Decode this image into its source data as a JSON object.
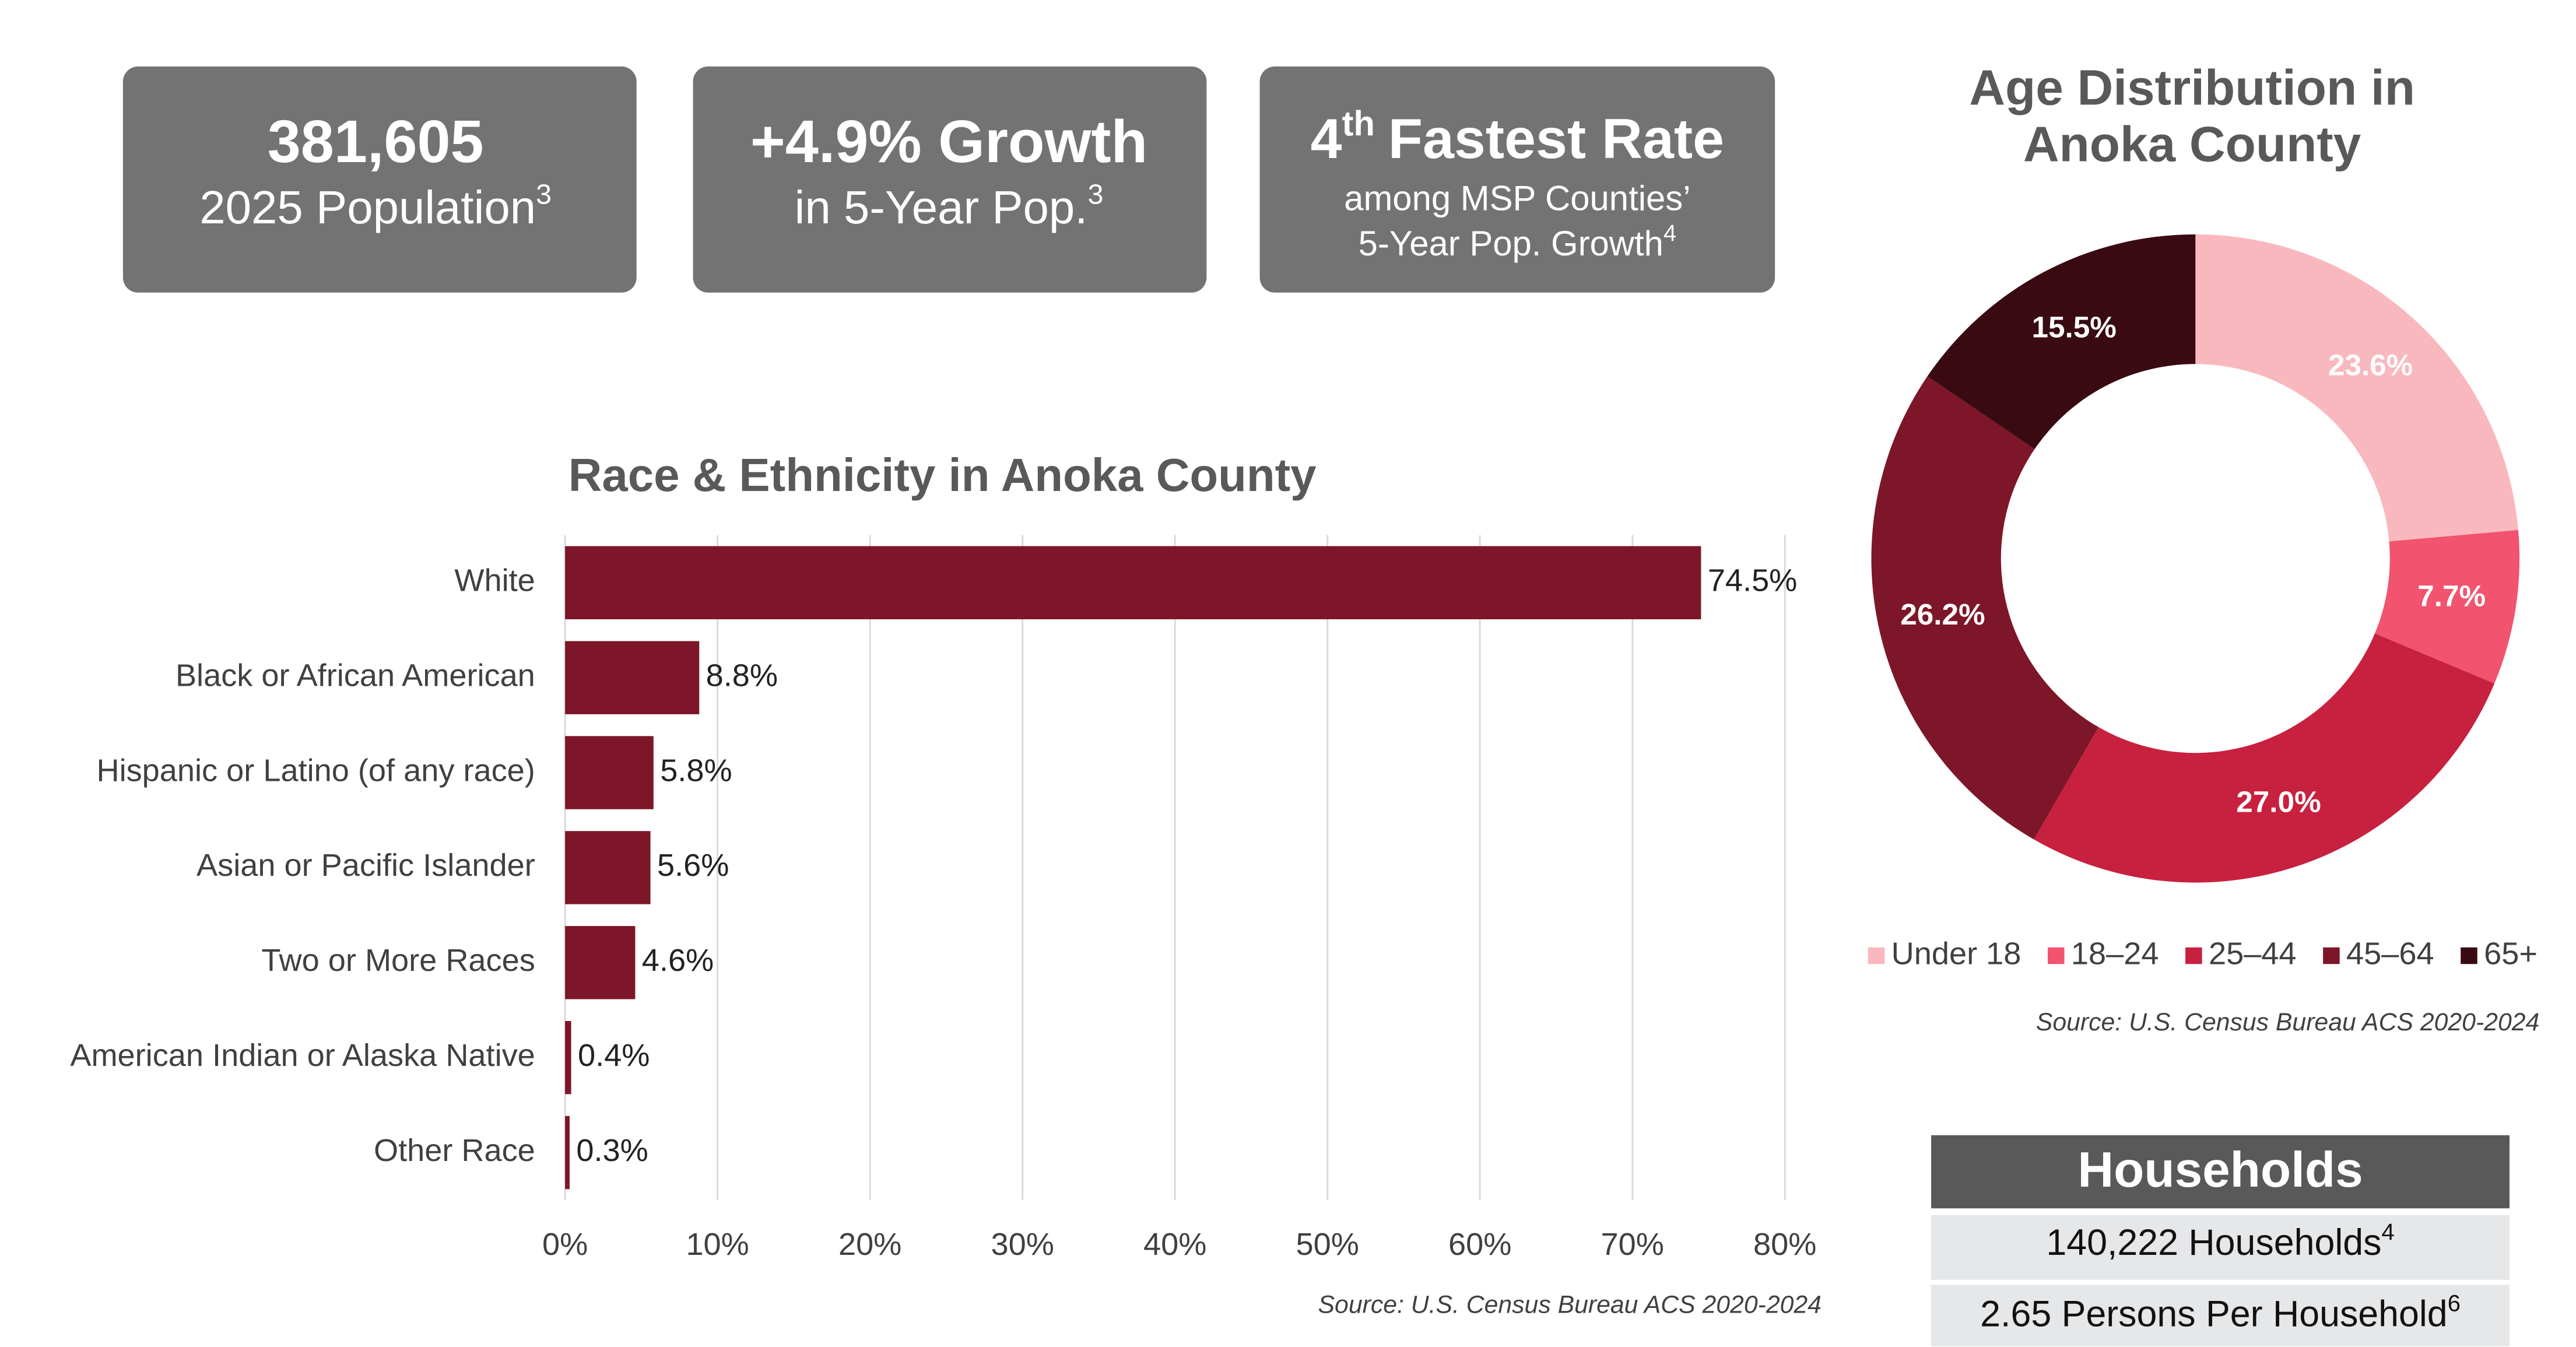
{
  "cards": [
    {
      "headline": [
        "381,605"
      ],
      "lines": [
        "2025 Population"
      ],
      "sup": "3"
    },
    {
      "headline": [
        "+4.9% Growth"
      ],
      "lines": [
        "in 5-Year Pop."
      ],
      "sup": "3"
    },
    {
      "headline": [
        "4",
        "th",
        "Fastest Rate"
      ],
      "lines": [
        "among MSP Counties’",
        "5-Year Pop. Growth"
      ],
      "sup": "4"
    }
  ],
  "households": {
    "header": "Households",
    "rows": [
      {
        "text": "140,222 Households",
        "sup": "4"
      },
      {
        "text": "2.65 Persons Per Household",
        "sup": "6"
      }
    ]
  },
  "chart_data": [
    {
      "type": "bar",
      "orientation": "horizontal",
      "title": "Race & Ethnicity in Anoka County",
      "categories": [
        "White",
        "Black or African American",
        "Hispanic or Latino (of any race)",
        "Asian or Pacific Islander",
        "Two or More Races",
        "American Indian or Alaska Native",
        "Other Race"
      ],
      "values": [
        74.5,
        8.8,
        5.8,
        5.6,
        4.6,
        0.4,
        0.3
      ],
      "value_labels": [
        "74.5%",
        "8.8%",
        "5.8%",
        "5.6%",
        "4.6%",
        "0.4%",
        "0.3%"
      ],
      "color": "#7d1628",
      "xlim": [
        0,
        80
      ],
      "xticks": [
        {
          "value": 0,
          "label": "0%"
        },
        {
          "value": 10,
          "label": "10%"
        },
        {
          "value": 20,
          "label": "20%"
        },
        {
          "value": 30,
          "label": "30%"
        },
        {
          "value": 40,
          "label": "40%"
        },
        {
          "value": 50,
          "label": "50%"
        },
        {
          "value": 60,
          "label": "60%"
        },
        {
          "value": 70,
          "label": "70%"
        },
        {
          "value": 80,
          "label": "80%"
        }
      ],
      "grid": true,
      "source": "Source: U.S. Census Bureau ACS 2020-2024"
    },
    {
      "type": "donut",
      "title": [
        "Age Distribution in",
        "Anoka County"
      ],
      "categories": [
        "Under 18",
        "18–24",
        "25–44",
        "45–64",
        "65+"
      ],
      "values": [
        23.6,
        7.7,
        27.0,
        26.2,
        15.5
      ],
      "value_labels": [
        "23.6%",
        "7.7%",
        "27.0%",
        "26.2%",
        "15.5%"
      ],
      "colors": [
        "#f9b8be",
        "#f2536f",
        "#c8203f",
        "#7d1628",
        "#3a0a12"
      ],
      "legend": "bottom",
      "source": "Source: U.S. Census Bureau ACS 2020-2024"
    }
  ]
}
